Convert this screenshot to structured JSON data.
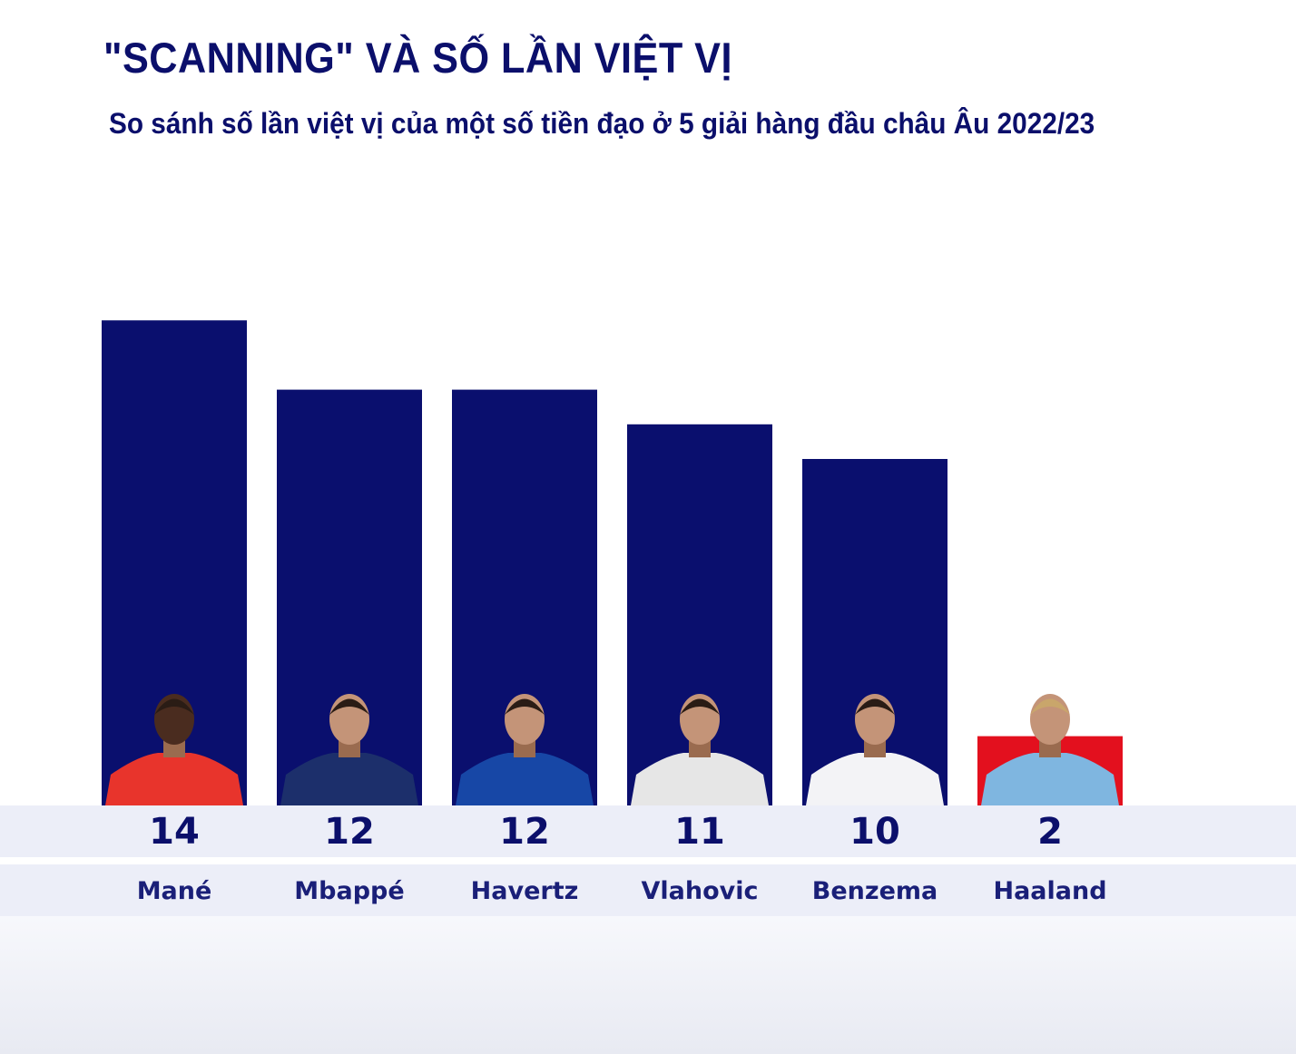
{
  "chart_data": {
    "type": "bar",
    "title": "\"SCANNING\" VÀ SỐ LẦN VIỆT VỊ",
    "subtitle": "So sánh số lần việt vị của một số tiền đạo ở 5 giải hàng đầu châu Âu 2022/23",
    "categories": [
      "Mané",
      "Mbappé",
      "Havertz",
      "Vlahovic",
      "Benzema",
      "Haaland"
    ],
    "values": [
      14,
      12,
      12,
      11,
      10,
      2
    ],
    "value_labels": [
      "14",
      "12",
      "12",
      "11",
      "10",
      "2"
    ],
    "bar_colors": [
      "#0a0f6e",
      "#0a0f6e",
      "#0a0f6e",
      "#0a0f6e",
      "#0a0f6e",
      "#e3101e"
    ],
    "player_photos": [
      "bayern-red-jersey",
      "psg-navy-jersey",
      "chelsea-blue-jersey",
      "juventus-striped-jersey",
      "real-madrid-white-jersey",
      "man-city-sky-blue-jersey"
    ],
    "jersey_colors": [
      "#e8342c",
      "#1c2f6b",
      "#1747a6",
      "#e6e6e6",
      "#f3f3f6",
      "#7fb6e0"
    ],
    "xlabel": "",
    "ylabel": "",
    "ylim": [
      0,
      14
    ],
    "grid": false,
    "legend": "none"
  }
}
